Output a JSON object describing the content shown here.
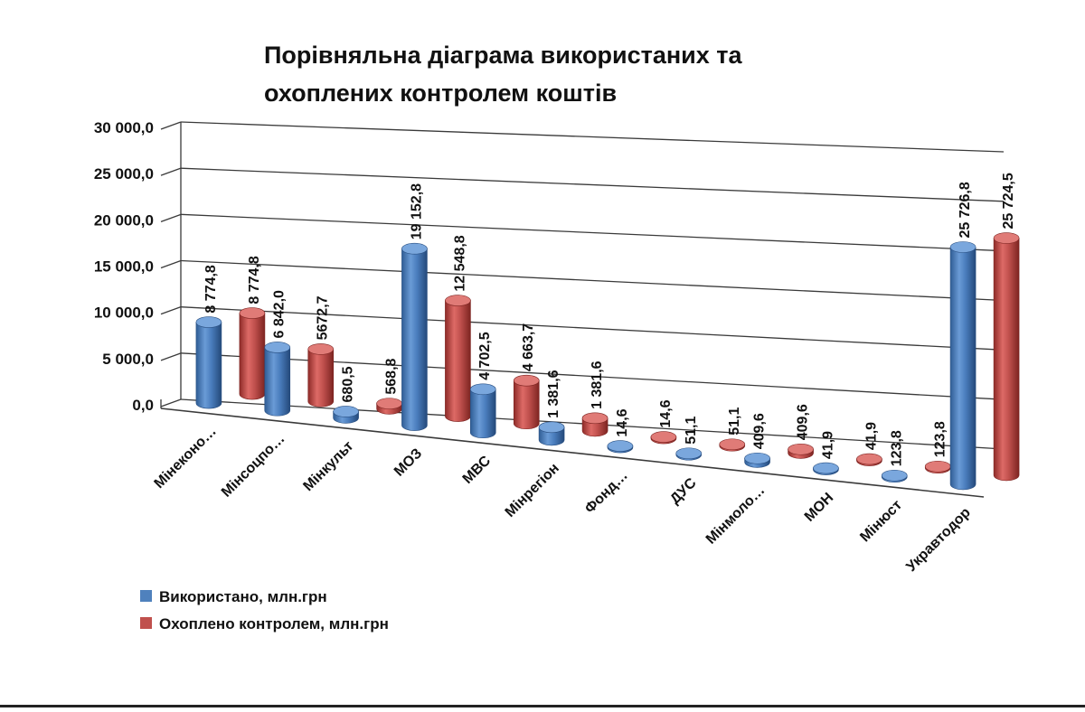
{
  "chart_data": {
    "type": "bar",
    "title_lines": [
      "Порівняльна діаграма використаних та",
      "охоплених контролем коштів"
    ],
    "categories": [
      "Мінеконо…",
      "Мінсоцпо…",
      "Мінкульт",
      "МОЗ",
      "МВС",
      "Мінрегіон",
      "Фонд…",
      "ДУС",
      "Мінмоло…",
      "МОН",
      "Мінюст",
      "Укравтодор"
    ],
    "series": [
      {
        "name": "Використано, млн.грн",
        "color": "#4f81bd",
        "values": [
          8774.8,
          6842.0,
          680.5,
          19152.8,
          4702.5,
          1381.6,
          14.6,
          51.1,
          409.6,
          41.9,
          123.8,
          25726.8
        ],
        "labels": [
          "8 774,8",
          "6 842,0",
          "680,5",
          "19 152,8",
          "4 702,5",
          "1 381,6",
          "14,6",
          "51,1",
          "409,6",
          "41,9",
          "123,8",
          "25 726,8"
        ]
      },
      {
        "name": "Охоплено контролем, млн.грн",
        "color": "#c0504d",
        "values": [
          8774.8,
          5672.7,
          568.8,
          12548.8,
          4663.7,
          1381.6,
          14.6,
          51.1,
          409.6,
          41.9,
          123.8,
          25724.5
        ],
        "labels": [
          "8 774,8",
          "5672,7",
          "568,8",
          "12 548,8",
          "4 663,7",
          "1 381,6",
          "14,6",
          "51,1",
          "409,6",
          "41,9",
          "123,8",
          "25 724,5"
        ]
      }
    ],
    "y_ticks": [
      "0,0",
      "5 000,0",
      "10 000,0",
      "15 000,0",
      "20 000,0",
      "25 000,0",
      "30 000,0"
    ],
    "ylim": [
      0,
      30000
    ],
    "grid": true,
    "legend_position": "bottom-left",
    "style": "3d-cylinder"
  }
}
